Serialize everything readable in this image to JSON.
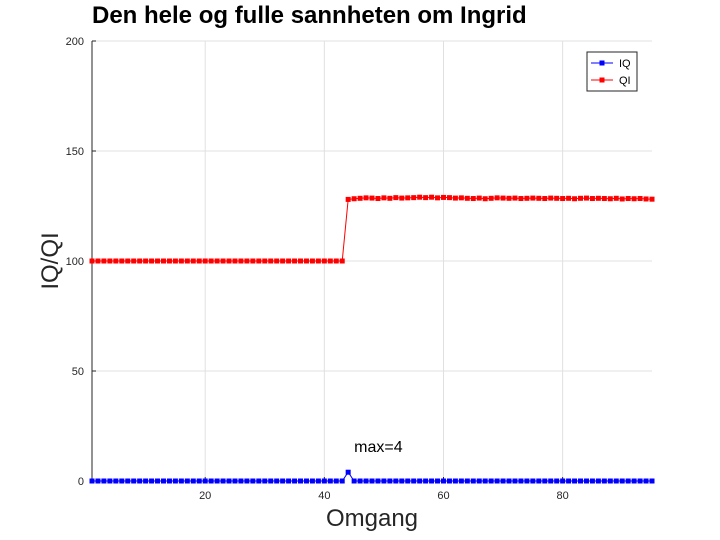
{
  "chart_data": {
    "type": "line",
    "title": "Den hele og fulle sannheten om Ingrid",
    "xlabel": "Omgang",
    "ylabel": "IQ/QI",
    "xlim": [
      1,
      95
    ],
    "ylim": [
      0,
      200
    ],
    "xticks": [
      20,
      40,
      60,
      80
    ],
    "yticks": [
      0,
      50,
      100,
      150,
      200
    ],
    "grid": true,
    "legend_position": "top-right",
    "annotation": {
      "text": "max=4",
      "x": 44,
      "y": 4
    },
    "series": [
      {
        "name": "IQ",
        "color": "#0000ff",
        "marker": "square",
        "x_start": 1,
        "values": [
          0,
          0,
          0,
          0,
          0,
          0,
          0,
          0,
          0,
          0,
          0,
          0,
          0,
          0,
          0,
          0,
          0,
          0,
          0,
          0,
          0,
          0,
          0,
          0,
          0,
          0,
          0,
          0,
          0,
          0,
          0,
          0,
          0,
          0,
          0,
          0,
          0,
          0,
          0,
          0,
          0,
          0,
          0,
          4,
          0,
          0,
          0,
          0,
          0,
          0,
          0,
          0,
          0,
          0,
          0,
          0,
          0,
          0,
          0,
          0,
          0,
          0,
          0,
          0,
          0,
          0,
          0,
          0,
          0,
          0,
          0,
          0,
          0,
          0,
          0,
          0,
          0,
          0,
          0,
          0,
          0,
          0,
          0,
          0,
          0,
          0,
          0,
          0,
          0,
          0,
          0,
          0,
          0,
          0,
          0
        ]
      },
      {
        "name": "QI",
        "color": "#ff0000",
        "marker": "square",
        "x_start": 1,
        "values": [
          100,
          100,
          100,
          100,
          100,
          100,
          100,
          100,
          100,
          100,
          100,
          100,
          100,
          100,
          100,
          100,
          100,
          100,
          100,
          100,
          100,
          100,
          100,
          100,
          100,
          100,
          100,
          100,
          100,
          100,
          100,
          100,
          100,
          100,
          100,
          100,
          100,
          100,
          100,
          100,
          100,
          100,
          100,
          128,
          128.3,
          128.5,
          128.7,
          128.6,
          128.4,
          128.7,
          128.5,
          128.8,
          128.6,
          128.7,
          128.8,
          129,
          128.8,
          129,
          128.7,
          128.9,
          128.8,
          128.6,
          128.7,
          128.5,
          128.4,
          128.6,
          128.3,
          128.5,
          128.7,
          128.6,
          128.5,
          128.6,
          128.4,
          128.5,
          128.6,
          128.5,
          128.4,
          128.6,
          128.5,
          128.4,
          128.5,
          128.3,
          128.5,
          128.6,
          128.4,
          128.5,
          128.4,
          128.3,
          128.5,
          128.2,
          128.4,
          128.3,
          128.4,
          128.2,
          128.1
        ]
      }
    ]
  }
}
